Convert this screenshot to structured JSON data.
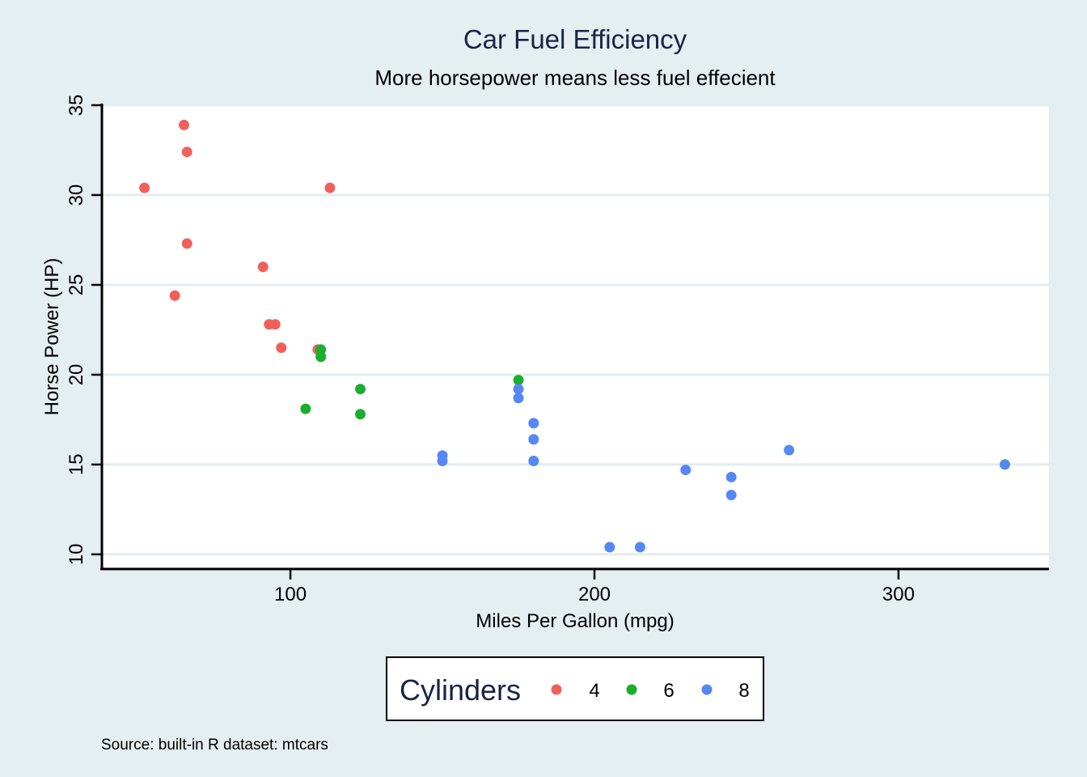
{
  "chart_data": {
    "type": "scatter",
    "title": "Car Fuel Efficiency",
    "subtitle": "More horsepower means less fuel effecient",
    "xlabel": "Miles Per Gallon (mpg)",
    "ylabel": "Horse Power (HP)",
    "xlim": [
      38,
      349.5
    ],
    "ylim": [
      9.23,
      35
    ],
    "xticks": [
      100,
      200,
      300
    ],
    "yticks": [
      10,
      15,
      20,
      25,
      30,
      35
    ],
    "grid": "horizontal",
    "legend": {
      "title": "Cylinders",
      "placement": "bottom-center",
      "entries": [
        {
          "label": "4",
          "color": "#f0605a"
        },
        {
          "label": "6",
          "color": "#1aaf2e"
        },
        {
          "label": "8",
          "color": "#5588f5"
        }
      ]
    },
    "series": [
      {
        "name": "4",
        "color": "#f0605a",
        "points": [
          {
            "x": 93,
            "y": 22.8
          },
          {
            "x": 62,
            "y": 24.4
          },
          {
            "x": 95,
            "y": 22.8
          },
          {
            "x": 66,
            "y": 32.4
          },
          {
            "x": 52,
            "y": 30.4
          },
          {
            "x": 65,
            "y": 33.9
          },
          {
            "x": 97,
            "y": 21.5
          },
          {
            "x": 66,
            "y": 27.3
          },
          {
            "x": 91,
            "y": 26.0
          },
          {
            "x": 113,
            "y": 30.4
          },
          {
            "x": 109,
            "y": 21.4
          }
        ]
      },
      {
        "name": "6",
        "color": "#1aaf2e",
        "points": [
          {
            "x": 110,
            "y": 21.0
          },
          {
            "x": 110,
            "y": 21.0
          },
          {
            "x": 110,
            "y": 21.4
          },
          {
            "x": 105,
            "y": 18.1
          },
          {
            "x": 123,
            "y": 19.2
          },
          {
            "x": 123,
            "y": 17.8
          },
          {
            "x": 175,
            "y": 19.7
          }
        ]
      },
      {
        "name": "8",
        "color": "#5588f5",
        "points": [
          {
            "x": 175,
            "y": 18.7
          },
          {
            "x": 245,
            "y": 14.3
          },
          {
            "x": 180,
            "y": 16.4
          },
          {
            "x": 180,
            "y": 17.3
          },
          {
            "x": 180,
            "y": 15.2
          },
          {
            "x": 205,
            "y": 10.4
          },
          {
            "x": 215,
            "y": 10.4
          },
          {
            "x": 230,
            "y": 14.7
          },
          {
            "x": 150,
            "y": 15.5
          },
          {
            "x": 150,
            "y": 15.2
          },
          {
            "x": 245,
            "y": 13.3
          },
          {
            "x": 175,
            "y": 19.2
          },
          {
            "x": 264,
            "y": 15.8
          },
          {
            "x": 335,
            "y": 15.0
          }
        ]
      }
    ],
    "source_note": "Source: built-in R dataset: mtcars"
  }
}
